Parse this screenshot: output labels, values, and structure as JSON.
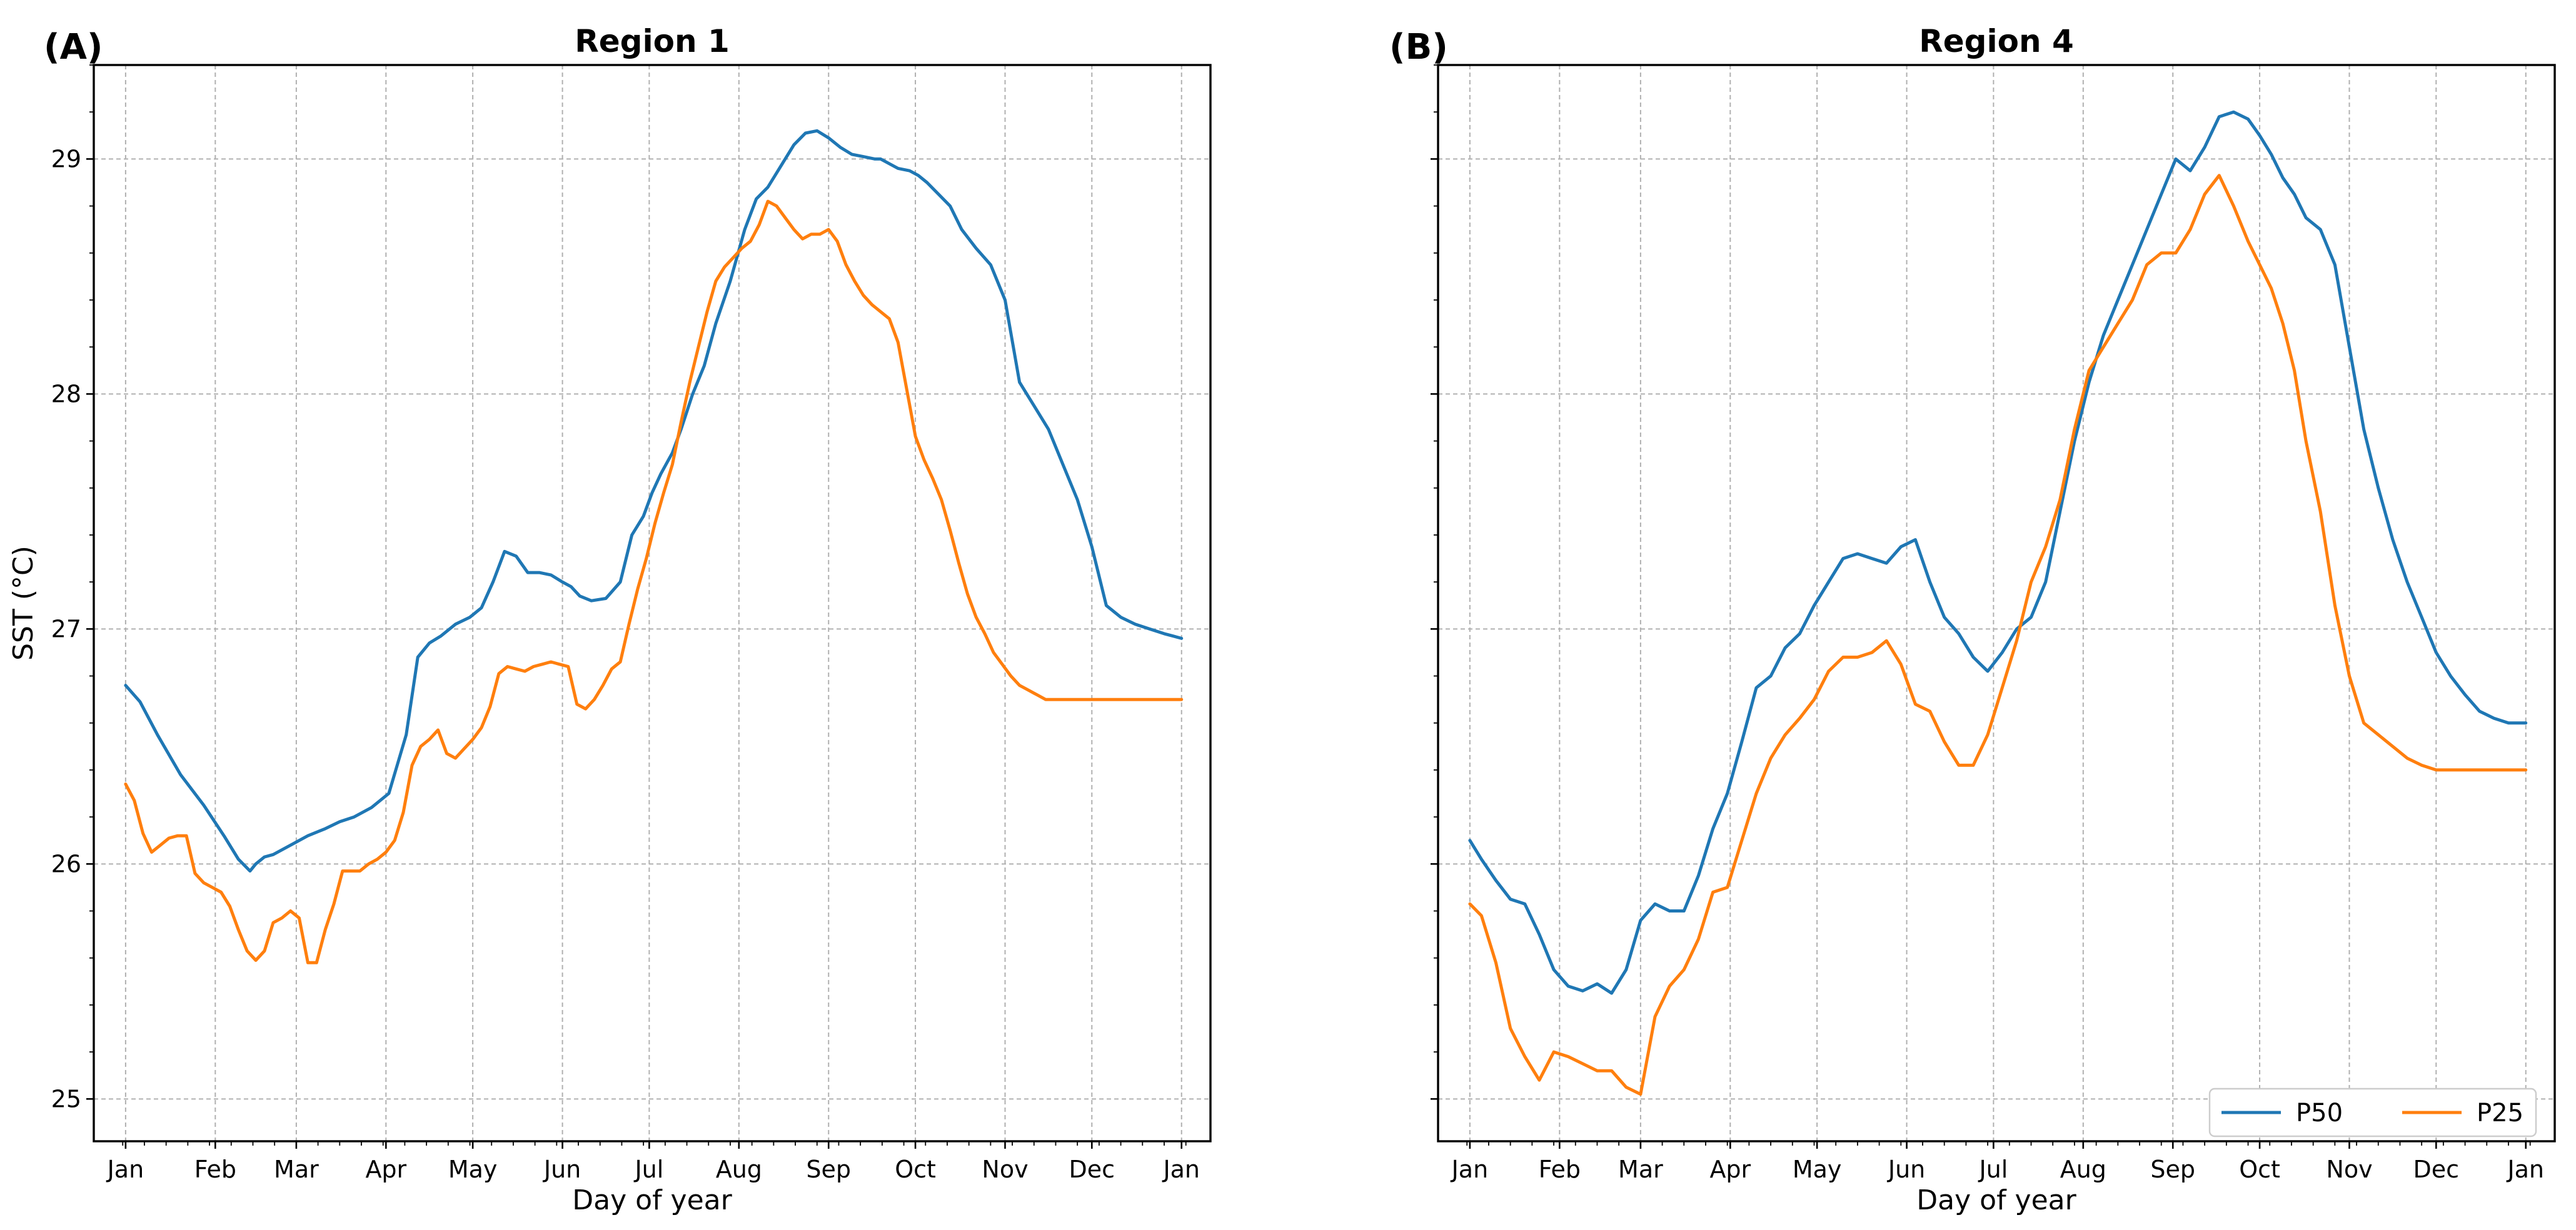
{
  "chart_data": [
    {
      "type": "line",
      "panel_label": "(A)",
      "title": "Region 1",
      "xlabel": "Day of year",
      "ylabel": "SST (°C)",
      "xlim": [
        -10,
        376
      ],
      "ylim": [
        24.82,
        29.4
      ],
      "yticks": [
        25,
        26,
        27,
        28,
        29
      ],
      "month_ticks": {
        "labels": [
          "Jan",
          "Feb",
          "Mar",
          "Apr",
          "May",
          "Jun",
          "Jul",
          "Aug",
          "Sep",
          "Oct",
          "Nov",
          "Dec",
          "Jan"
        ],
        "days": [
          1,
          32,
          60,
          91,
          121,
          152,
          182,
          213,
          244,
          274,
          305,
          335,
          366
        ]
      },
      "grid": true,
      "legend": null,
      "series": [
        {
          "name": "P50",
          "color": "#1f77b4",
          "x": [
            1,
            6,
            12,
            20,
            28,
            35,
            40,
            44,
            46,
            49,
            52,
            58,
            64,
            70,
            75,
            80,
            86,
            92,
            98,
            102,
            106,
            110,
            115,
            120,
            124,
            128,
            132,
            136,
            140,
            144,
            148,
            152,
            155,
            158,
            162,
            167,
            172,
            176,
            180,
            183,
            186,
            190,
            193,
            197,
            201,
            205,
            210,
            215,
            219,
            223,
            228,
            232,
            236,
            240,
            244,
            248,
            252,
            256,
            260,
            262,
            265,
            268,
            272,
            275,
            278,
            282,
            286,
            290,
            295,
            300,
            305,
            310,
            315,
            320,
            325,
            330,
            335,
            340,
            345,
            350,
            355,
            360,
            363,
            366
          ],
          "values": [
            26.76,
            26.69,
            26.55,
            26.38,
            26.25,
            26.12,
            26.02,
            25.97,
            26.0,
            26.03,
            26.04,
            26.08,
            26.12,
            26.15,
            26.18,
            26.2,
            26.24,
            26.3,
            26.55,
            26.88,
            26.94,
            26.97,
            27.02,
            27.05,
            27.09,
            27.2,
            27.33,
            27.31,
            27.24,
            27.24,
            27.23,
            27.2,
            27.18,
            27.14,
            27.12,
            27.13,
            27.2,
            27.4,
            27.48,
            27.58,
            27.66,
            27.75,
            27.85,
            28.0,
            28.12,
            28.3,
            28.48,
            28.7,
            28.83,
            28.88,
            28.98,
            29.06,
            29.11,
            29.12,
            29.09,
            29.05,
            29.02,
            29.01,
            29.0,
            29.0,
            28.98,
            28.96,
            28.95,
            28.93,
            28.9,
            28.85,
            28.8,
            28.7,
            28.62,
            28.55,
            28.4,
            28.05,
            27.95,
            27.85,
            27.7,
            27.55,
            27.35,
            27.1,
            27.05,
            27.02,
            27.0,
            26.98,
            26.97,
            26.96
          ]
        },
        {
          "name": "P25",
          "color": "#ff7f0e",
          "x": [
            1,
            4,
            7,
            10,
            13,
            16,
            19,
            22,
            25,
            28,
            31,
            34,
            37,
            40,
            43,
            46,
            49,
            52,
            55,
            58,
            61,
            64,
            67,
            70,
            73,
            76,
            79,
            82,
            85,
            88,
            91,
            94,
            97,
            100,
            103,
            106,
            109,
            112,
            115,
            118,
            121,
            124,
            127,
            130,
            133,
            136,
            139,
            142,
            145,
            148,
            151,
            154,
            157,
            160,
            163,
            166,
            169,
            172,
            175,
            178,
            181,
            184,
            187,
            190,
            193,
            196,
            199,
            202,
            205,
            208,
            211,
            214,
            217,
            220,
            223,
            226,
            229,
            232,
            235,
            238,
            241,
            244,
            247,
            250,
            253,
            256,
            259,
            262,
            265,
            268,
            271,
            274,
            277,
            280,
            283,
            286,
            289,
            292,
            295,
            298,
            301,
            304,
            307,
            310,
            313,
            316,
            319,
            322,
            325,
            328,
            331,
            334,
            337,
            340,
            343,
            346,
            349,
            352,
            355,
            358,
            361,
            363,
            366
          ],
          "values": [
            26.34,
            26.27,
            26.13,
            26.05,
            26.08,
            26.11,
            26.12,
            26.12,
            25.96,
            25.92,
            25.9,
            25.88,
            25.82,
            25.72,
            25.63,
            25.59,
            25.63,
            25.75,
            25.77,
            25.8,
            25.77,
            25.58,
            25.58,
            25.72,
            25.83,
            25.97,
            25.97,
            25.97,
            26.0,
            26.02,
            26.05,
            26.1,
            26.22,
            26.42,
            26.5,
            26.53,
            26.57,
            26.47,
            26.45,
            26.49,
            26.53,
            26.58,
            26.67,
            26.81,
            26.84,
            26.83,
            26.82,
            26.84,
            26.85,
            26.86,
            26.85,
            26.84,
            26.68,
            26.66,
            26.7,
            26.76,
            26.83,
            26.86,
            27.02,
            27.17,
            27.3,
            27.45,
            27.58,
            27.7,
            27.88,
            28.05,
            28.2,
            28.35,
            28.48,
            28.54,
            28.58,
            28.62,
            28.65,
            28.72,
            28.82,
            28.8,
            28.75,
            28.7,
            28.66,
            28.68,
            28.68,
            28.7,
            28.65,
            28.55,
            28.48,
            28.42,
            28.38,
            28.35,
            28.32,
            28.22,
            28.02,
            27.82,
            27.72,
            27.64,
            27.55,
            27.42,
            27.28,
            27.15,
            27.05,
            26.98,
            26.9,
            26.85,
            26.8,
            26.76,
            26.74,
            26.72,
            26.7,
            26.7,
            26.7,
            26.7,
            26.7,
            26.7,
            26.7,
            26.7,
            26.7,
            26.7,
            26.7,
            26.7,
            26.7,
            26.7,
            26.7,
            26.7,
            26.7
          ]
        }
      ]
    },
    {
      "type": "line",
      "panel_label": "(B)",
      "title": "Region 4",
      "xlabel": "Day of year",
      "ylabel": "",
      "xlim": [
        -10,
        376
      ],
      "ylim": [
        24.82,
        29.4
      ],
      "yticks": [
        25,
        26,
        27,
        28,
        29
      ],
      "month_ticks": {
        "labels": [
          "Jan",
          "Feb",
          "Mar",
          "Apr",
          "May",
          "Jun",
          "Jul",
          "Aug",
          "Sep",
          "Oct",
          "Nov",
          "Dec",
          "Jan"
        ],
        "days": [
          1,
          32,
          60,
          91,
          121,
          152,
          182,
          213,
          244,
          274,
          305,
          335,
          366
        ]
      },
      "grid": true,
      "legend": {
        "position": "lower-right",
        "entries": [
          "P50",
          "P25"
        ]
      },
      "series": [
        {
          "name": "P50",
          "color": "#1f77b4",
          "x": [
            1,
            5,
            10,
            15,
            20,
            25,
            30,
            35,
            40,
            45,
            50,
            55,
            60,
            65,
            70,
            75,
            80,
            85,
            90,
            95,
            100,
            105,
            110,
            115,
            120,
            125,
            130,
            135,
            140,
            145,
            150,
            155,
            160,
            165,
            170,
            175,
            180,
            185,
            190,
            195,
            200,
            205,
            210,
            215,
            220,
            225,
            230,
            235,
            240,
            245,
            250,
            255,
            260,
            265,
            270,
            274,
            278,
            282,
            286,
            290,
            295,
            300,
            305,
            310,
            315,
            320,
            325,
            330,
            335,
            340,
            345,
            350,
            355,
            360,
            363,
            366
          ],
          "values": [
            26.1,
            26.02,
            25.93,
            25.85,
            25.83,
            25.7,
            25.55,
            25.48,
            25.46,
            25.49,
            25.45,
            25.55,
            25.76,
            25.83,
            25.8,
            25.8,
            25.95,
            26.15,
            26.3,
            26.52,
            26.75,
            26.8,
            26.92,
            26.98,
            27.1,
            27.2,
            27.3,
            27.32,
            27.3,
            27.28,
            27.35,
            27.38,
            27.2,
            27.05,
            26.98,
            26.88,
            26.82,
            26.9,
            27.0,
            27.05,
            27.2,
            27.5,
            27.8,
            28.05,
            28.25,
            28.4,
            28.55,
            28.7,
            28.85,
            29.0,
            28.95,
            29.05,
            29.18,
            29.2,
            29.17,
            29.1,
            29.02,
            28.92,
            28.85,
            28.75,
            28.7,
            28.55,
            28.2,
            27.85,
            27.6,
            27.38,
            27.2,
            27.05,
            26.9,
            26.8,
            26.72,
            26.65,
            26.62,
            26.6,
            26.6,
            26.6
          ]
        },
        {
          "name": "P25",
          "color": "#ff7f0e",
          "x": [
            1,
            5,
            10,
            15,
            20,
            25,
            30,
            35,
            40,
            45,
            50,
            55,
            60,
            65,
            70,
            75,
            80,
            85,
            90,
            95,
            100,
            105,
            110,
            115,
            120,
            125,
            130,
            135,
            140,
            145,
            150,
            155,
            160,
            165,
            170,
            175,
            180,
            185,
            190,
            195,
            200,
            205,
            210,
            215,
            220,
            225,
            230,
            235,
            240,
            245,
            250,
            255,
            260,
            265,
            270,
            274,
            278,
            282,
            286,
            290,
            295,
            300,
            305,
            310,
            315,
            320,
            325,
            330,
            335,
            340,
            345,
            350,
            355,
            360,
            363,
            366
          ],
          "values": [
            25.83,
            25.78,
            25.58,
            25.3,
            25.18,
            25.08,
            25.2,
            25.18,
            25.15,
            25.12,
            25.12,
            25.05,
            25.02,
            25.35,
            25.48,
            25.55,
            25.68,
            25.88,
            25.9,
            26.1,
            26.3,
            26.45,
            26.55,
            26.62,
            26.7,
            26.82,
            26.88,
            26.88,
            26.9,
            26.95,
            26.85,
            26.68,
            26.65,
            26.52,
            26.42,
            26.42,
            26.55,
            26.75,
            26.95,
            27.2,
            27.35,
            27.55,
            27.85,
            28.1,
            28.2,
            28.3,
            28.4,
            28.55,
            28.6,
            28.6,
            28.7,
            28.85,
            28.93,
            28.8,
            28.65,
            28.55,
            28.45,
            28.3,
            28.1,
            27.8,
            27.5,
            27.1,
            26.8,
            26.6,
            26.55,
            26.5,
            26.45,
            26.42,
            26.4,
            26.4,
            26.4,
            26.4,
            26.4,
            26.4,
            26.4,
            26.4
          ]
        }
      ]
    }
  ]
}
